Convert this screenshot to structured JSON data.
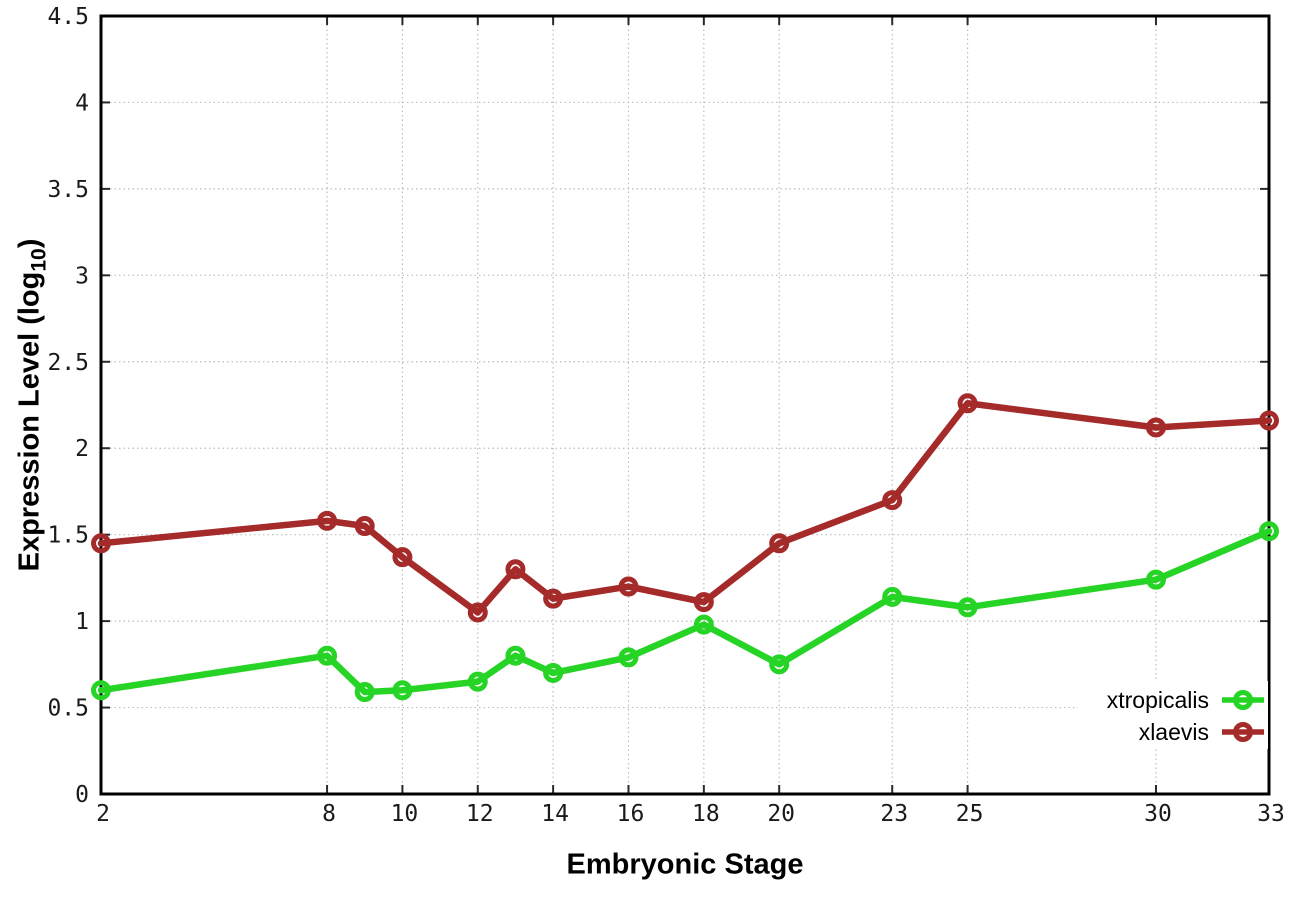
{
  "chart_data": {
    "type": "line",
    "title": "",
    "xlabel": "Embryonic Stage",
    "ylabel": {
      "text": "Expression Level (log",
      "sub": "10",
      "close": ")"
    },
    "xlim": [
      2,
      33
    ],
    "ylim": [
      0,
      4.5
    ],
    "xticks": [
      2,
      8,
      10,
      12,
      14,
      16,
      18,
      20,
      23,
      25,
      30,
      33
    ],
    "yticks": [
      0,
      0.5,
      1,
      1.5,
      2,
      2.5,
      3,
      3.5,
      4,
      4.5
    ],
    "grid": true,
    "legend_position": "inside-bottom-right",
    "x": [
      2,
      8,
      9,
      10,
      12,
      13,
      14,
      16,
      18,
      20,
      23,
      25,
      30,
      33
    ],
    "series": [
      {
        "name": "xtropicalis",
        "color": "#25d425",
        "marker": "open-circle",
        "values": [
          0.6,
          0.8,
          0.59,
          0.6,
          0.65,
          0.8,
          0.7,
          0.79,
          0.98,
          0.75,
          1.14,
          1.08,
          1.24,
          1.52
        ]
      },
      {
        "name": "xlaevis",
        "color": "#a52a2a",
        "marker": "open-circle",
        "values": [
          1.45,
          1.58,
          1.55,
          1.37,
          1.05,
          1.3,
          1.13,
          1.2,
          1.11,
          1.45,
          1.7,
          2.26,
          2.12,
          2.16
        ]
      }
    ]
  },
  "styles": {
    "background": "#ffffff",
    "grid_color": "#bdbdbd",
    "axis_color": "#000000",
    "tick_color": "#2a2a2a",
    "text_color": "#1a1a1a"
  }
}
